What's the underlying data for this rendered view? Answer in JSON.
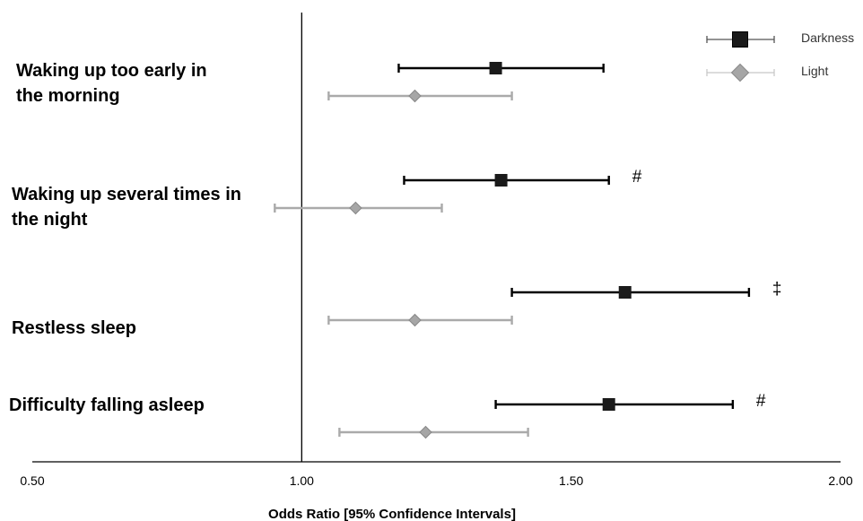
{
  "chart_data": {
    "type": "forest",
    "xlabel": "Odds Ratio [95% Confidence Intervals]",
    "xlim": [
      0.5,
      2.0
    ],
    "xticks": [
      0.5,
      1.0,
      1.5,
      2.0
    ],
    "xtick_labels": [
      "0.50",
      "1.00",
      "1.50",
      "2.00"
    ],
    "reference_line": 1.0,
    "legend": {
      "position": "top-right"
    },
    "categories": [
      {
        "label": "Waking up too early in the morning",
        "lines": [
          "Waking up too early in",
          "the morning"
        ]
      },
      {
        "label": "Waking up several times in the night",
        "lines": [
          "Waking up several times in",
          "the night"
        ]
      },
      {
        "label": "Restless sleep",
        "lines": [
          "Restless sleep"
        ]
      },
      {
        "label": "Difficulty falling asleep",
        "lines": [
          "Difficulty falling asleep"
        ]
      }
    ],
    "series": [
      {
        "name": "Darkness",
        "marker": "square",
        "color": "#000000",
        "marker_fill": "#1a1a1a",
        "values": [
          {
            "or": 1.36,
            "lo": 1.18,
            "hi": 1.56,
            "annotation": ""
          },
          {
            "or": 1.37,
            "lo": 1.19,
            "hi": 1.57,
            "annotation": "#"
          },
          {
            "or": 1.6,
            "lo": 1.39,
            "hi": 1.83,
            "annotation": "‡"
          },
          {
            "or": 1.57,
            "lo": 1.36,
            "hi": 1.8,
            "annotation": "#"
          }
        ]
      },
      {
        "name": "Light",
        "marker": "diamond",
        "color": "#aaaaaa",
        "marker_fill": "#a6a6a6",
        "values": [
          {
            "or": 1.21,
            "lo": 1.05,
            "hi": 1.39,
            "annotation": ""
          },
          {
            "or": 1.1,
            "lo": 0.95,
            "hi": 1.26,
            "annotation": ""
          },
          {
            "or": 1.21,
            "lo": 1.05,
            "hi": 1.39,
            "annotation": ""
          },
          {
            "or": 1.23,
            "lo": 1.07,
            "hi": 1.42,
            "annotation": ""
          }
        ]
      }
    ]
  }
}
